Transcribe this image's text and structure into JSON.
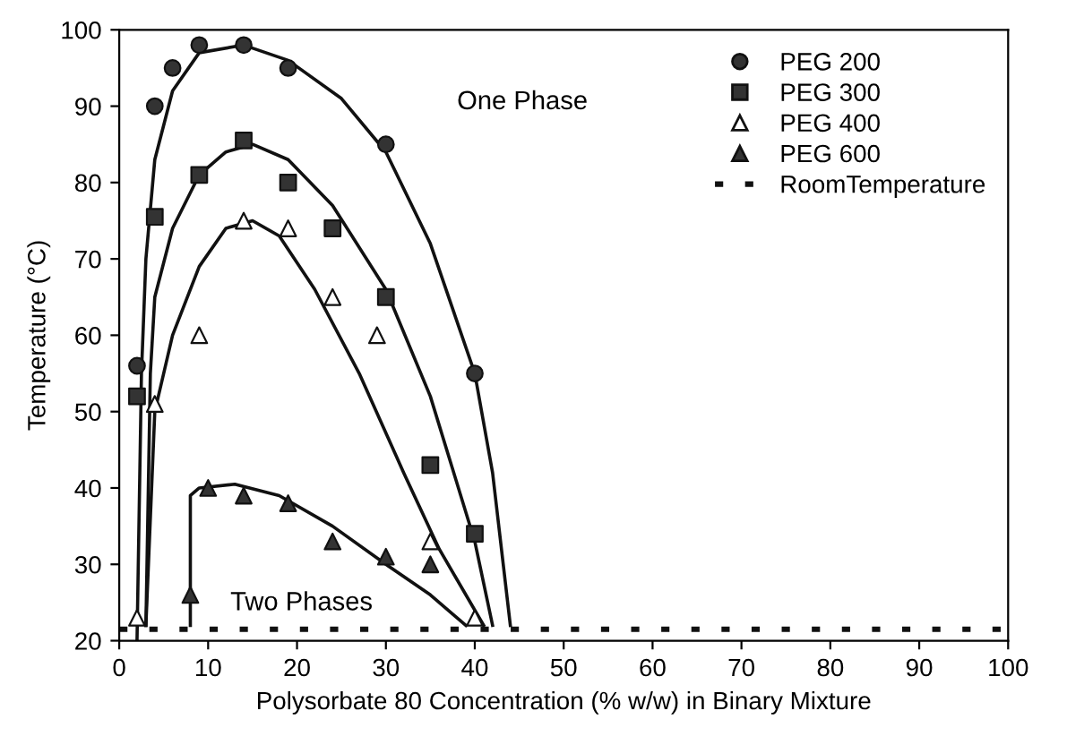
{
  "chart_data": {
    "type": "scatter",
    "xlabel": "Polysorbate 80 Concentration (% w/w) in Binary Mixture",
    "ylabel": "Temperature (°C)",
    "xlim": [
      0,
      100
    ],
    "xticks": [
      0,
      10,
      20,
      30,
      40,
      50,
      60,
      70,
      80,
      90,
      100
    ],
    "ylim": [
      20,
      100
    ],
    "yticks": [
      20,
      30,
      40,
      50,
      60,
      70,
      80,
      90,
      100
    ],
    "grid": false,
    "legend": "top right",
    "annotations": [
      "One Phase",
      "Two Phases"
    ],
    "series": [
      {
        "name": "PEG 200",
        "marker": "circle",
        "color": "#333333",
        "x": [
          2,
          4,
          6,
          9,
          14,
          19,
          30,
          40
        ],
        "values": [
          56,
          90,
          95,
          98,
          98,
          95,
          85,
          55
        ]
      },
      {
        "name": "PEG 300",
        "marker": "square",
        "color": "#333333",
        "x": [
          2,
          4,
          9,
          14,
          19,
          24,
          30,
          35,
          40
        ],
        "values": [
          52,
          75.5,
          81,
          85.5,
          80,
          74,
          65,
          43,
          34
        ]
      },
      {
        "name": "PEG 400",
        "marker": "triangle",
        "color": "#ffffff",
        "x": [
          2,
          4,
          9,
          14,
          19,
          24,
          29,
          35,
          40
        ],
        "values": [
          23,
          51,
          60,
          75,
          74,
          65,
          60,
          33,
          23
        ]
      },
      {
        "name": "PEG 600",
        "marker": "triangle",
        "color": "#333333",
        "x": [
          8,
          10,
          14,
          19,
          24,
          30,
          35
        ],
        "values": [
          26,
          40,
          39,
          38,
          33,
          31,
          30
        ]
      },
      {
        "type": "line",
        "line_style": "solid",
        "color": "#111111",
        "x": [
          2,
          2.5,
          3,
          4,
          6,
          9,
          14,
          19,
          25,
          30,
          35,
          40,
          42,
          44
        ],
        "values": [
          20,
          55,
          70,
          83,
          92,
          97,
          98,
          96,
          91,
          84,
          72,
          55,
          42,
          22
        ]
      },
      {
        "type": "line",
        "line_style": "solid",
        "color": "#111111",
        "x": [
          3,
          3.5,
          4,
          6,
          9,
          12,
          15,
          19,
          24,
          30,
          35,
          40,
          42
        ],
        "values": [
          22,
          55,
          65,
          74,
          81,
          84,
          85,
          83,
          77,
          66,
          52,
          33,
          22
        ]
      },
      {
        "type": "line",
        "line_style": "solid",
        "color": "#111111",
        "x": [
          3,
          4,
          6,
          9,
          12,
          15,
          18,
          22,
          27,
          32,
          36,
          41
        ],
        "values": [
          22,
          50,
          60,
          69,
          74,
          75,
          73,
          66,
          55,
          42,
          32,
          22
        ]
      },
      {
        "type": "line",
        "line_style": "solid",
        "color": "#111111",
        "x": [
          8,
          8,
          9,
          13,
          18,
          24,
          30,
          35,
          39
        ],
        "values": [
          22,
          39,
          40,
          40.5,
          39,
          35,
          30,
          26,
          22
        ]
      },
      {
        "name": "RoomTemperature",
        "type": "line",
        "line_style": "dotted",
        "color": "#111111",
        "x": [
          0,
          100
        ],
        "values": [
          21.5,
          21.5
        ]
      }
    ]
  }
}
